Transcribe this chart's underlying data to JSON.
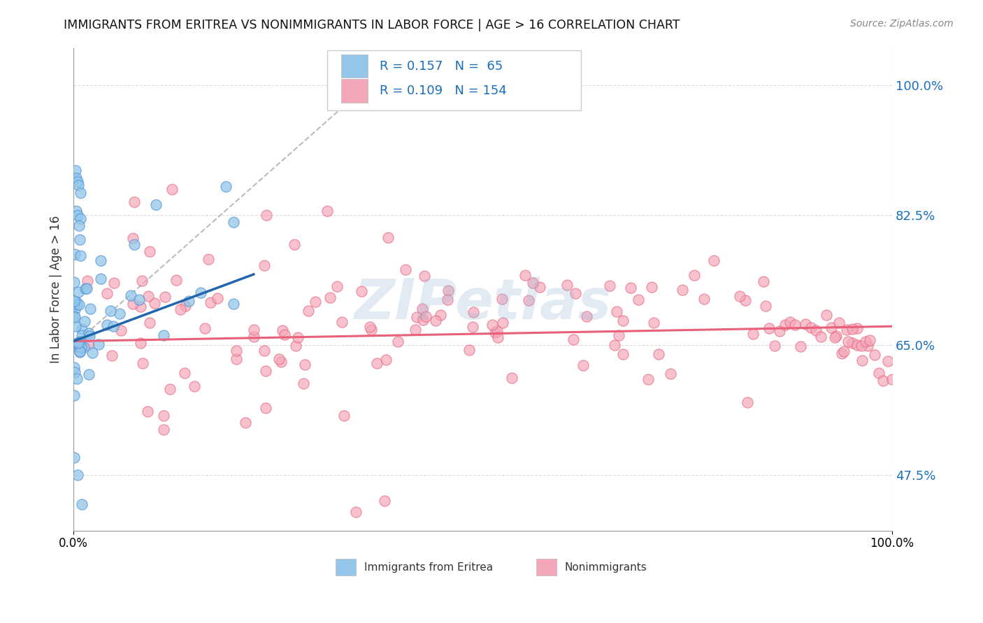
{
  "title": "IMMIGRANTS FROM ERITREA VS NONIMMIGRANTS IN LABOR FORCE | AGE > 16 CORRELATION CHART",
  "source": "Source: ZipAtlas.com",
  "ylabel": "In Labor Force | Age > 16",
  "xlim": [
    0.0,
    1.0
  ],
  "ylim": [
    0.4,
    1.05
  ],
  "yticks": [
    0.475,
    0.65,
    0.825,
    1.0
  ],
  "ytick_labels": [
    "47.5%",
    "65.0%",
    "82.5%",
    "100.0%"
  ],
  "xtick_labels": [
    "0.0%",
    "100.0%"
  ],
  "xticks": [
    0.0,
    1.0
  ],
  "color_blue": "#93c6e8",
  "color_pink": "#f4a7b9",
  "color_blue_edge": "#4a90d9",
  "color_pink_edge": "#e8607a",
  "color_blue_line": "#2166ac",
  "color_pink_line": "#e8607a",
  "color_diag": "#aaaaaa",
  "watermark": "ZIPetlas",
  "watermark_color": "#9ab8d8",
  "grid_color": "#cccccc",
  "background": "#ffffff"
}
